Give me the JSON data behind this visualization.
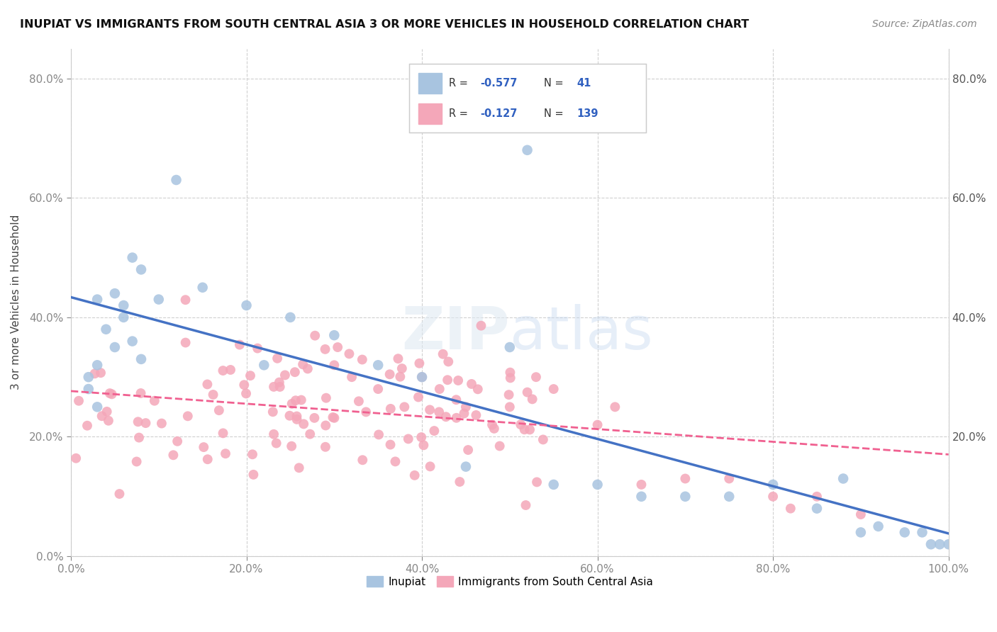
{
  "title": "INUPIAT VS IMMIGRANTS FROM SOUTH CENTRAL ASIA 3 OR MORE VEHICLES IN HOUSEHOLD CORRELATION CHART",
  "source": "Source: ZipAtlas.com",
  "ylabel": "3 or more Vehicles in Household",
  "inupiat_color": "#a8c4e0",
  "immigrant_color": "#f4a7b9",
  "inupiat_line_color": "#4472c4",
  "immigrant_line_color": "#f06090",
  "R_inupiat": -0.577,
  "N_inupiat": 41,
  "R_immigrant": -0.127,
  "N_immigrant": 139,
  "background_color": "#ffffff",
  "xlim": [
    0.0,
    1.0
  ],
  "ylim": [
    0.0,
    0.85
  ],
  "xticks": [
    0.0,
    0.2,
    0.4,
    0.6,
    0.8,
    1.0
  ],
  "xtick_labels": [
    "0.0%",
    "20.0%",
    "40.0%",
    "60.0%",
    "80.0%",
    "100.0%"
  ],
  "yticks": [
    0.0,
    0.2,
    0.4,
    0.6,
    0.8
  ],
  "ytick_labels": [
    "0.0%",
    "20.0%",
    "40.0%",
    "60.0%",
    "80.0%"
  ],
  "ytick_labels_right": [
    "",
    "20.0%",
    "40.0%",
    "60.0%",
    "80.0%"
  ],
  "inupiat_x": [
    0.02,
    0.03,
    0.04,
    0.05,
    0.06,
    0.07,
    0.08,
    0.02,
    0.03,
    0.05,
    0.06,
    0.08,
    0.1,
    0.12,
    0.03,
    0.07,
    0.15,
    0.2,
    0.25,
    0.3,
    0.22,
    0.35,
    0.4,
    0.5,
    0.55,
    0.6,
    0.65,
    0.7,
    0.8,
    0.85,
    0.9,
    0.95,
    0.97,
    0.98,
    0.99,
    1.0,
    0.92,
    0.88,
    0.75,
    0.45,
    0.52
  ],
  "inupiat_y": [
    0.3,
    0.32,
    0.38,
    0.35,
    0.42,
    0.36,
    0.33,
    0.28,
    0.25,
    0.44,
    0.4,
    0.48,
    0.43,
    0.63,
    0.43,
    0.5,
    0.45,
    0.42,
    0.4,
    0.37,
    0.32,
    0.32,
    0.3,
    0.35,
    0.12,
    0.12,
    0.1,
    0.1,
    0.12,
    0.08,
    0.04,
    0.04,
    0.04,
    0.02,
    0.02,
    0.02,
    0.05,
    0.13,
    0.1,
    0.15,
    0.68
  ]
}
